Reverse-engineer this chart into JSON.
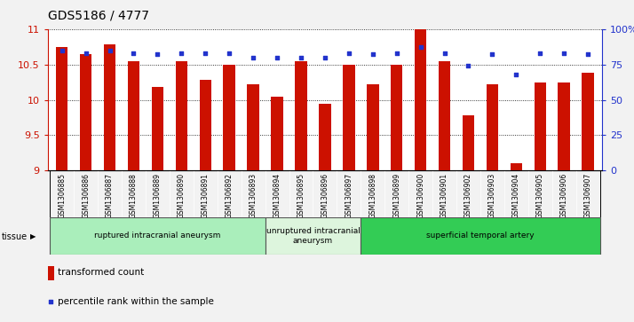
{
  "title": "GDS5186 / 4777",
  "samples": [
    "GSM1306885",
    "GSM1306886",
    "GSM1306887",
    "GSM1306888",
    "GSM1306889",
    "GSM1306890",
    "GSM1306891",
    "GSM1306892",
    "GSM1306893",
    "GSM1306894",
    "GSM1306895",
    "GSM1306896",
    "GSM1306897",
    "GSM1306898",
    "GSM1306899",
    "GSM1306900",
    "GSM1306901",
    "GSM1306902",
    "GSM1306903",
    "GSM1306904",
    "GSM1306905",
    "GSM1306906",
    "GSM1306907"
  ],
  "bar_values": [
    10.75,
    10.65,
    10.78,
    10.55,
    10.18,
    10.55,
    10.28,
    10.5,
    10.22,
    10.05,
    10.55,
    9.95,
    10.5,
    10.22,
    10.5,
    11.0,
    10.55,
    9.78,
    10.22,
    9.1,
    10.25,
    10.25,
    10.38
  ],
  "percentile_values": [
    85,
    83,
    85,
    83,
    82,
    83,
    83,
    83,
    80,
    80,
    80,
    80,
    83,
    82,
    83,
    87,
    83,
    74,
    82,
    68,
    83,
    83,
    82
  ],
  "ylim_left": [
    9,
    11
  ],
  "ylim_right": [
    0,
    100
  ],
  "yticks_left": [
    9,
    9.5,
    10,
    10.5,
    11
  ],
  "yticks_right": [
    0,
    25,
    50,
    75,
    100
  ],
  "ytick_labels_right": [
    "0",
    "25",
    "50",
    "75",
    "100%"
  ],
  "bar_color": "#cc1100",
  "dot_color": "#2233cc",
  "groups": [
    {
      "label": "ruptured intracranial aneurysm",
      "start": 0,
      "end": 8,
      "color": "#aaeebb"
    },
    {
      "label": "unruptured intracranial\naneurysm",
      "start": 9,
      "end": 12,
      "color": "#ddf5dd"
    },
    {
      "label": "superficial temporal artery",
      "start": 13,
      "end": 22,
      "color": "#33cc55"
    }
  ],
  "tissue_label": "tissue",
  "legend_bar_label": "transformed count",
  "legend_dot_label": "percentile rank within the sample",
  "background_color": "#f2f2f2",
  "plot_bg_color": "#ffffff",
  "title_fontsize": 10,
  "axis_label_fontsize": 8,
  "tick_fontsize": 7,
  "bar_width": 0.5,
  "group_border_color": "#555555"
}
